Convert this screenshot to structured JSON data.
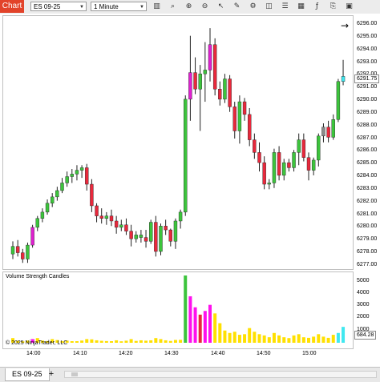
{
  "toolbar": {
    "chart_tab_label": "Chart",
    "instrument": "ES 09-25",
    "interval": "1 Minute",
    "icons": [
      "bar-chart-icon",
      "magnifier-icon",
      "zoom-in-icon",
      "zoom-out-icon",
      "cursor-icon",
      "pencil-icon",
      "strategy-icon",
      "camera-icon",
      "properties-icon",
      "grid-icon",
      "indicators-icon",
      "attach-icon",
      "workspace-icon"
    ]
  },
  "price_axis": {
    "labels": [
      "6296.00",
      "6295.00",
      "6294.00",
      "6293.00",
      "6292.00",
      "6291.00",
      "6290.00",
      "6289.00",
      "6288.00",
      "6287.00",
      "6286.00",
      "6285.00",
      "6284.00",
      "6283.00",
      "6282.00",
      "6281.00",
      "6280.00",
      "6279.00",
      "6278.00",
      "6277.00"
    ],
    "last_price": "6291.75"
  },
  "volume_panel": {
    "title": "Volume Strength Candles",
    "axis_labels": [
      "5000",
      "4000",
      "3000",
      "2000",
      "1000"
    ],
    "last_value": "684.28",
    "copyright": "© 2025 NinjaTrader, LLC"
  },
  "time_axis": {
    "labels": [
      "14:00",
      "14:10",
      "14:20",
      "14:30",
      "14:40",
      "14:50",
      "15:00"
    ]
  },
  "tabbar": {
    "instrument_tab": "ES 09-25",
    "add_tab": "+"
  },
  "colors": {
    "up": "#3cc43c",
    "down": "#e8283c",
    "magenta": "#e020d0",
    "gray": "#8c8c8c",
    "vol_yellow": "#ffe000",
    "vol_magenta": "#ff10ee",
    "vol_cyan": "#40e8f0",
    "vol_red": "#e8283c",
    "vol_green": "#3cc43c",
    "accent": "#e2432a"
  },
  "chart_data": {
    "type": "candlestick",
    "price_range": [
      6276.5,
      6296.5
    ],
    "volume_range": [
      0,
      5500
    ],
    "candles": [
      {
        "o": 6278.0,
        "h": 6279.0,
        "l": 6277.6,
        "c": 6278.6,
        "col": "up"
      },
      {
        "o": 6278.6,
        "h": 6279.1,
        "l": 6277.8,
        "c": 6278.1,
        "col": "down"
      },
      {
        "o": 6278.1,
        "h": 6278.4,
        "l": 6277.3,
        "c": 6277.6,
        "col": "down"
      },
      {
        "o": 6277.6,
        "h": 6278.9,
        "l": 6277.3,
        "c": 6278.7,
        "col": "up"
      },
      {
        "o": 6278.7,
        "h": 6280.3,
        "l": 6278.5,
        "c": 6280.1,
        "col": "magenta"
      },
      {
        "o": 6280.1,
        "h": 6281.0,
        "l": 6279.8,
        "c": 6280.8,
        "col": "up"
      },
      {
        "o": 6280.8,
        "h": 6281.6,
        "l": 6280.5,
        "c": 6281.3,
        "col": "up"
      },
      {
        "o": 6281.3,
        "h": 6282.3,
        "l": 6281.1,
        "c": 6282.0,
        "col": "up"
      },
      {
        "o": 6282.0,
        "h": 6282.8,
        "l": 6281.7,
        "c": 6282.5,
        "col": "up"
      },
      {
        "o": 6282.5,
        "h": 6283.3,
        "l": 6282.2,
        "c": 6283.0,
        "col": "up"
      },
      {
        "o": 6283.0,
        "h": 6284.0,
        "l": 6282.8,
        "c": 6283.6,
        "col": "up"
      },
      {
        "o": 6283.6,
        "h": 6284.5,
        "l": 6283.3,
        "c": 6284.1,
        "col": "up"
      },
      {
        "o": 6284.1,
        "h": 6284.7,
        "l": 6283.6,
        "c": 6284.3,
        "col": "up"
      },
      {
        "o": 6284.3,
        "h": 6285.0,
        "l": 6283.8,
        "c": 6284.6,
        "col": "up"
      },
      {
        "o": 6284.6,
        "h": 6285.0,
        "l": 6284.0,
        "c": 6284.8,
        "col": "up"
      },
      {
        "o": 6284.8,
        "h": 6285.1,
        "l": 6283.0,
        "c": 6283.5,
        "col": "down"
      },
      {
        "o": 6283.5,
        "h": 6283.9,
        "l": 6281.3,
        "c": 6281.8,
        "col": "down"
      },
      {
        "o": 6281.8,
        "h": 6282.0,
        "l": 6280.5,
        "c": 6281.0,
        "col": "down"
      },
      {
        "o": 6281.0,
        "h": 6281.6,
        "l": 6280.4,
        "c": 6280.8,
        "col": "down"
      },
      {
        "o": 6280.8,
        "h": 6281.3,
        "l": 6280.3,
        "c": 6281.0,
        "col": "up"
      },
      {
        "o": 6281.0,
        "h": 6281.5,
        "l": 6280.2,
        "c": 6280.6,
        "col": "down"
      },
      {
        "o": 6280.6,
        "h": 6281.0,
        "l": 6279.6,
        "c": 6280.1,
        "col": "down"
      },
      {
        "o": 6280.1,
        "h": 6280.7,
        "l": 6279.8,
        "c": 6280.3,
        "col": "up"
      },
      {
        "o": 6280.3,
        "h": 6280.8,
        "l": 6279.5,
        "c": 6279.8,
        "col": "down"
      },
      {
        "o": 6279.8,
        "h": 6280.3,
        "l": 6278.6,
        "c": 6279.2,
        "col": "down"
      },
      {
        "o": 6279.2,
        "h": 6279.8,
        "l": 6278.9,
        "c": 6279.5,
        "col": "up"
      },
      {
        "o": 6279.5,
        "h": 6279.9,
        "l": 6278.9,
        "c": 6279.3,
        "col": "up"
      },
      {
        "o": 6279.3,
        "h": 6279.9,
        "l": 6278.5,
        "c": 6279.0,
        "col": "down"
      },
      {
        "o": 6279.0,
        "h": 6280.7,
        "l": 6278.8,
        "c": 6280.5,
        "col": "up"
      },
      {
        "o": 6280.5,
        "h": 6281.0,
        "l": 6277.8,
        "c": 6278.2,
        "col": "down"
      },
      {
        "o": 6278.2,
        "h": 6280.4,
        "l": 6277.9,
        "c": 6280.2,
        "col": "up"
      },
      {
        "o": 6280.2,
        "h": 6280.7,
        "l": 6279.5,
        "c": 6279.9,
        "col": "down"
      },
      {
        "o": 6279.9,
        "h": 6280.0,
        "l": 6278.6,
        "c": 6279.0,
        "col": "down"
      },
      {
        "o": 6279.0,
        "h": 6280.8,
        "l": 6278.4,
        "c": 6280.6,
        "col": "up"
      },
      {
        "o": 6280.6,
        "h": 6281.5,
        "l": 6280.0,
        "c": 6281.3,
        "col": "up"
      },
      {
        "o": 6281.3,
        "h": 6290.5,
        "l": 6281.0,
        "c": 6290.2,
        "col": "up"
      },
      {
        "o": 6290.2,
        "h": 6295.2,
        "l": 6288.5,
        "c": 6292.3,
        "col": "magenta"
      },
      {
        "o": 6292.3,
        "h": 6293.5,
        "l": 6290.6,
        "c": 6291.0,
        "col": "down"
      },
      {
        "o": 6291.0,
        "h": 6292.9,
        "l": 6287.7,
        "c": 6292.2,
        "col": "up"
      },
      {
        "o": 6292.2,
        "h": 6294.7,
        "l": 6290.0,
        "c": 6292.5,
        "col": "up"
      },
      {
        "o": 6292.5,
        "h": 6295.8,
        "l": 6291.6,
        "c": 6294.5,
        "col": "magenta"
      },
      {
        "o": 6294.5,
        "h": 6295.0,
        "l": 6290.5,
        "c": 6291.0,
        "col": "down"
      },
      {
        "o": 6291.0,
        "h": 6291.6,
        "l": 6289.7,
        "c": 6290.2,
        "col": "down"
      },
      {
        "o": 6290.2,
        "h": 6292.2,
        "l": 6289.9,
        "c": 6291.8,
        "col": "up"
      },
      {
        "o": 6291.8,
        "h": 6292.1,
        "l": 6289.2,
        "c": 6289.6,
        "col": "down"
      },
      {
        "o": 6289.6,
        "h": 6290.0,
        "l": 6287.1,
        "c": 6287.7,
        "col": "down"
      },
      {
        "o": 6287.7,
        "h": 6290.5,
        "l": 6286.7,
        "c": 6290.0,
        "col": "up"
      },
      {
        "o": 6290.0,
        "h": 6290.3,
        "l": 6288.5,
        "c": 6289.0,
        "col": "down"
      },
      {
        "o": 6289.0,
        "h": 6289.5,
        "l": 6286.5,
        "c": 6287.0,
        "col": "down"
      },
      {
        "o": 6287.0,
        "h": 6287.5,
        "l": 6285.5,
        "c": 6286.0,
        "col": "down"
      },
      {
        "o": 6286.0,
        "h": 6286.8,
        "l": 6284.5,
        "c": 6285.2,
        "col": "down"
      },
      {
        "o": 6285.2,
        "h": 6285.7,
        "l": 6283.1,
        "c": 6283.5,
        "col": "down"
      },
      {
        "o": 6283.5,
        "h": 6283.9,
        "l": 6283.1,
        "c": 6283.6,
        "col": "up"
      },
      {
        "o": 6283.6,
        "h": 6286.3,
        "l": 6283.2,
        "c": 6286.0,
        "col": "up"
      },
      {
        "o": 6286.0,
        "h": 6286.5,
        "l": 6283.8,
        "c": 6284.2,
        "col": "down"
      },
      {
        "o": 6284.2,
        "h": 6285.5,
        "l": 6283.8,
        "c": 6285.2,
        "col": "up"
      },
      {
        "o": 6285.2,
        "h": 6285.5,
        "l": 6284.5,
        "c": 6284.8,
        "col": "down"
      },
      {
        "o": 6284.8,
        "h": 6286.2,
        "l": 6284.5,
        "c": 6286.0,
        "col": "up"
      },
      {
        "o": 6286.0,
        "h": 6287.5,
        "l": 6285.0,
        "c": 6287.0,
        "col": "up"
      },
      {
        "o": 6287.0,
        "h": 6287.5,
        "l": 6285.3,
        "c": 6285.6,
        "col": "down"
      },
      {
        "o": 6285.6,
        "h": 6286.0,
        "l": 6283.8,
        "c": 6284.6,
        "col": "down"
      },
      {
        "o": 6284.6,
        "h": 6285.6,
        "l": 6284.2,
        "c": 6285.4,
        "col": "up"
      },
      {
        "o": 6285.4,
        "h": 6287.5,
        "l": 6284.9,
        "c": 6287.3,
        "col": "up"
      },
      {
        "o": 6287.3,
        "h": 6288.3,
        "l": 6286.8,
        "c": 6288.0,
        "col": "gray"
      },
      {
        "o": 6288.0,
        "h": 6288.5,
        "l": 6286.8,
        "c": 6287.2,
        "col": "down"
      },
      {
        "o": 6287.2,
        "h": 6289.0,
        "l": 6287.0,
        "c": 6288.6,
        "col": "up"
      },
      {
        "o": 6288.6,
        "h": 6291.8,
        "l": 6288.4,
        "c": 6291.6,
        "col": "up"
      },
      {
        "o": 6291.6,
        "h": 6293.3,
        "l": 6291.3,
        "c": 6292.0,
        "col": "cyan"
      }
    ],
    "volumes": [
      {
        "v": 380,
        "col": "vol_yellow"
      },
      {
        "v": 160,
        "col": "vol_yellow"
      },
      {
        "v": 120,
        "col": "vol_yellow"
      },
      {
        "v": 180,
        "col": "vol_yellow"
      },
      {
        "v": 300,
        "col": "vol_magenta"
      },
      {
        "v": 380,
        "col": "vol_yellow"
      },
      {
        "v": 180,
        "col": "vol_yellow"
      },
      {
        "v": 140,
        "col": "vol_yellow"
      },
      {
        "v": 300,
        "col": "vol_yellow"
      },
      {
        "v": 220,
        "col": "vol_yellow"
      },
      {
        "v": 140,
        "col": "vol_yellow"
      },
      {
        "v": 170,
        "col": "vol_yellow"
      },
      {
        "v": 130,
        "col": "vol_yellow"
      },
      {
        "v": 130,
        "col": "vol_yellow"
      },
      {
        "v": 180,
        "col": "vol_yellow"
      },
      {
        "v": 300,
        "col": "vol_yellow"
      },
      {
        "v": 280,
        "col": "vol_yellow"
      },
      {
        "v": 200,
        "col": "vol_yellow"
      },
      {
        "v": 160,
        "col": "vol_yellow"
      },
      {
        "v": 140,
        "col": "vol_yellow"
      },
      {
        "v": 130,
        "col": "vol_yellow"
      },
      {
        "v": 200,
        "col": "vol_yellow"
      },
      {
        "v": 120,
        "col": "vol_yellow"
      },
      {
        "v": 170,
        "col": "vol_yellow"
      },
      {
        "v": 300,
        "col": "vol_yellow"
      },
      {
        "v": 150,
        "col": "vol_yellow"
      },
      {
        "v": 200,
        "col": "vol_yellow"
      },
      {
        "v": 170,
        "col": "vol_yellow"
      },
      {
        "v": 200,
        "col": "vol_yellow"
      },
      {
        "v": 380,
        "col": "vol_yellow"
      },
      {
        "v": 300,
        "col": "vol_yellow"
      },
      {
        "v": 200,
        "col": "vol_yellow"
      },
      {
        "v": 150,
        "col": "vol_yellow"
      },
      {
        "v": 230,
        "col": "vol_yellow"
      },
      {
        "v": 240,
        "col": "vol_yellow"
      },
      {
        "v": 5500,
        "col": "vol_green"
      },
      {
        "v": 3800,
        "col": "vol_magenta"
      },
      {
        "v": 2900,
        "col": "vol_magenta"
      },
      {
        "v": 2300,
        "col": "vol_red"
      },
      {
        "v": 2600,
        "col": "vol_magenta"
      },
      {
        "v": 3100,
        "col": "vol_magenta"
      },
      {
        "v": 2400,
        "col": "vol_yellow"
      },
      {
        "v": 1600,
        "col": "vol_yellow"
      },
      {
        "v": 1000,
        "col": "vol_yellow"
      },
      {
        "v": 800,
        "col": "vol_yellow"
      },
      {
        "v": 900,
        "col": "vol_yellow"
      },
      {
        "v": 650,
        "col": "vol_yellow"
      },
      {
        "v": 700,
        "col": "vol_yellow"
      },
      {
        "v": 1200,
        "col": "vol_yellow"
      },
      {
        "v": 900,
        "col": "vol_yellow"
      },
      {
        "v": 700,
        "col": "vol_yellow"
      },
      {
        "v": 600,
        "col": "vol_yellow"
      },
      {
        "v": 450,
        "col": "vol_yellow"
      },
      {
        "v": 800,
        "col": "vol_yellow"
      },
      {
        "v": 600,
        "col": "vol_yellow"
      },
      {
        "v": 450,
        "col": "vol_yellow"
      },
      {
        "v": 380,
        "col": "vol_yellow"
      },
      {
        "v": 600,
        "col": "vol_yellow"
      },
      {
        "v": 700,
        "col": "vol_yellow"
      },
      {
        "v": 450,
        "col": "vol_yellow"
      },
      {
        "v": 400,
        "col": "vol_yellow"
      },
      {
        "v": 500,
        "col": "vol_yellow"
      },
      {
        "v": 700,
        "col": "vol_yellow"
      },
      {
        "v": 500,
        "col": "vol_yellow"
      },
      {
        "v": 400,
        "col": "vol_yellow"
      },
      {
        "v": 650,
        "col": "vol_yellow"
      },
      {
        "v": 800,
        "col": "vol_cyan"
      },
      {
        "v": 1300,
        "col": "vol_cyan"
      }
    ]
  }
}
